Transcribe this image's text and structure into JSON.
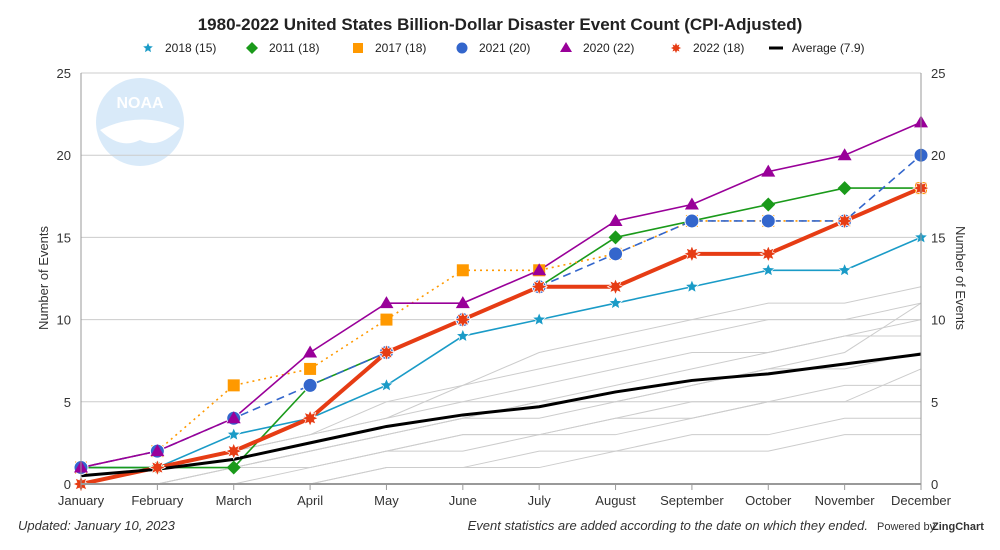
{
  "chart_data": {
    "type": "line",
    "title": "1980-2022 United States Billion-Dollar Disaster Event Count (CPI-Adjusted)",
    "ylabel": "Number of Events",
    "ylabel_right": "Number of Events",
    "xlabel": "",
    "categories": [
      "January",
      "February",
      "March",
      "April",
      "May",
      "June",
      "July",
      "August",
      "September",
      "October",
      "November",
      "December"
    ],
    "ylim": [
      0,
      25
    ],
    "yticks": [
      0,
      5,
      10,
      15,
      20,
      25
    ],
    "grid": true,
    "legend_position": "top",
    "series": [
      {
        "name": "2018 (15)",
        "color": "#1a9bc7",
        "marker": "star",
        "dash": "solid",
        "values": [
          1,
          1,
          3,
          4,
          6,
          9,
          10,
          11,
          12,
          13,
          13,
          15
        ]
      },
      {
        "name": "2011 (18)",
        "color": "#1a9a1a",
        "marker": "diamond",
        "dash": "solid",
        "values": [
          1,
          1,
          1,
          6,
          8,
          10,
          12,
          15,
          16,
          17,
          18,
          18
        ]
      },
      {
        "name": "2017 (18)",
        "color": "#ff9900",
        "marker": "square",
        "dash": "dotted",
        "values": [
          1,
          2,
          6,
          7,
          10,
          13,
          13,
          14,
          16,
          16,
          16,
          18
        ]
      },
      {
        "name": "2021 (20)",
        "color": "#3366cc",
        "marker": "circle",
        "dash": "dashed",
        "values": [
          1,
          2,
          4,
          6,
          8,
          10,
          12,
          14,
          16,
          16,
          16,
          20
        ]
      },
      {
        "name": "2020 (22)",
        "color": "#990099",
        "marker": "triangle",
        "dash": "solid",
        "values": [
          1,
          2,
          4,
          8,
          11,
          11,
          13,
          16,
          17,
          19,
          20,
          22
        ]
      },
      {
        "name": "2022 (18)",
        "color": "#e63c14",
        "marker": "burst",
        "dash": "solid",
        "values": [
          0,
          1,
          2,
          4,
          8,
          10,
          12,
          12,
          14,
          14,
          16,
          18
        ]
      },
      {
        "name": "Average (7.9)",
        "color": "#000000",
        "marker": "none",
        "dash": "solid",
        "values": [
          0.5,
          0.9,
          1.5,
          2.5,
          3.5,
          4.2,
          4.7,
          5.6,
          6.3,
          6.7,
          7.3,
          7.9
        ]
      }
    ],
    "background_years_color": "#cccccc",
    "background_years": [
      [
        0,
        0,
        0,
        0,
        1,
        1,
        2,
        2,
        3,
        3,
        4,
        4
      ],
      [
        0,
        0,
        1,
        1,
        2,
        3,
        3,
        4,
        5,
        5,
        6,
        6
      ],
      [
        0,
        1,
        1,
        2,
        3,
        4,
        4,
        5,
        6,
        7,
        7,
        8
      ],
      [
        0,
        0,
        0,
        1,
        2,
        2,
        3,
        3,
        4,
        5,
        5,
        5
      ],
      [
        1,
        1,
        2,
        3,
        4,
        5,
        6,
        7,
        8,
        8,
        9,
        10
      ],
      [
        0,
        1,
        1,
        2,
        3,
        4,
        5,
        6,
        7,
        8,
        9,
        9
      ],
      [
        0,
        0,
        1,
        2,
        3,
        4,
        5,
        5,
        6,
        7,
        8,
        11
      ],
      [
        0,
        0,
        0,
        0,
        1,
        1,
        1,
        2,
        2,
        2,
        3,
        3
      ],
      [
        1,
        1,
        2,
        3,
        5,
        6,
        8,
        9,
        10,
        11,
        11,
        12
      ],
      [
        0,
        1,
        2,
        3,
        4,
        6,
        7,
        8,
        9,
        10,
        10,
        11
      ],
      [
        0,
        0,
        1,
        1,
        2,
        3,
        3,
        4,
        4,
        5,
        5,
        7
      ]
    ]
  },
  "footer": {
    "updated": "Updated: January 10, 2023",
    "note": "Event statistics are added according to the date on which they ended.",
    "powered": "Powered by",
    "brand": "ZingChart"
  },
  "logo": {
    "text": "NOAA"
  }
}
